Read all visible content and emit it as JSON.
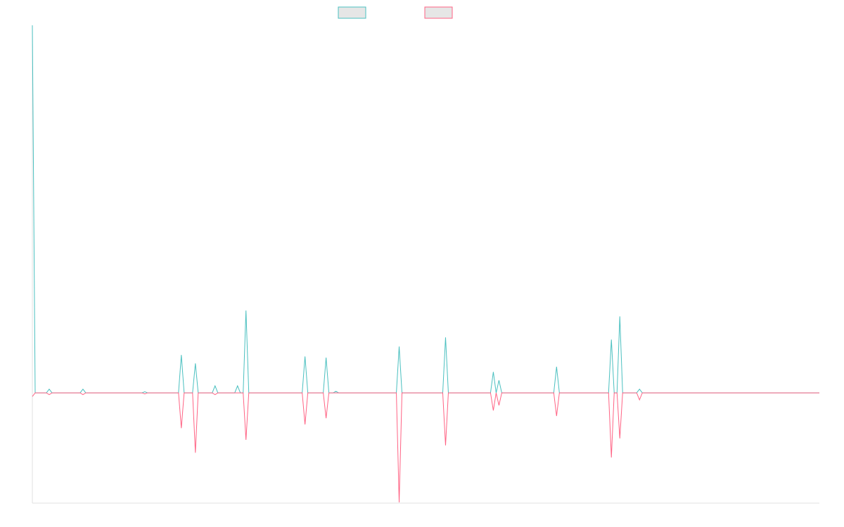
{
  "chart_data": {
    "type": "line",
    "x": [
      0,
      1,
      5,
      6,
      7,
      17,
      18,
      19,
      39,
      40,
      41,
      52,
      53,
      54,
      57,
      58,
      59,
      64,
      65,
      66,
      72,
      73,
      74,
      75,
      76,
      77,
      96,
      97,
      98,
      103.5,
      104.5,
      105.5,
      107,
      108,
      109,
      129.5,
      130.5,
      131.5,
      146,
      147,
      148,
      163,
      164,
      165,
      166,
      167,
      185.5,
      186.5,
      187.5,
      205,
      206,
      207,
      208,
      209,
      210,
      215,
      216,
      217,
      280
    ],
    "series": [
      {
        "color": "#4bc0c0",
        "values": [
          10,
          0,
          0,
          0.1,
          0,
          0,
          0.1,
          0,
          0,
          0.03,
          0,
          0,
          1.03,
          0,
          0,
          0.8,
          0,
          0,
          0.19,
          0,
          0,
          0.19,
          0,
          0,
          2.24,
          0,
          0,
          0.99,
          0,
          0,
          0.96,
          0,
          0,
          0.04,
          0,
          0,
          1.26,
          0,
          0,
          1.51,
          0,
          0,
          0.57,
          0,
          0.34,
          0,
          0,
          0.71,
          0,
          0,
          1.45,
          0,
          0,
          2.08,
          0,
          0,
          0.1,
          0,
          0
        ]
      },
      {
        "color": "#ff6384",
        "values": [
          -0.1,
          0,
          0,
          -0.05,
          0,
          0,
          -0.05,
          0,
          0,
          -0.03,
          0,
          0,
          -0.96,
          0,
          0,
          -1.63,
          0,
          0,
          -0.05,
          0,
          0,
          0,
          0,
          0,
          -1.28,
          0,
          0,
          -0.86,
          0,
          0,
          -0.69,
          0,
          0,
          0,
          0,
          0,
          -2.98,
          0,
          0,
          -1.43,
          0,
          0,
          -0.48,
          0,
          -0.34,
          0,
          0,
          -0.63,
          0,
          0,
          -1.76,
          0,
          0,
          -1.24,
          0,
          0,
          -0.19,
          0,
          0
        ]
      }
    ],
    "xlim": [
      0,
      280
    ],
    "ylim": [
      -3,
      10
    ]
  }
}
